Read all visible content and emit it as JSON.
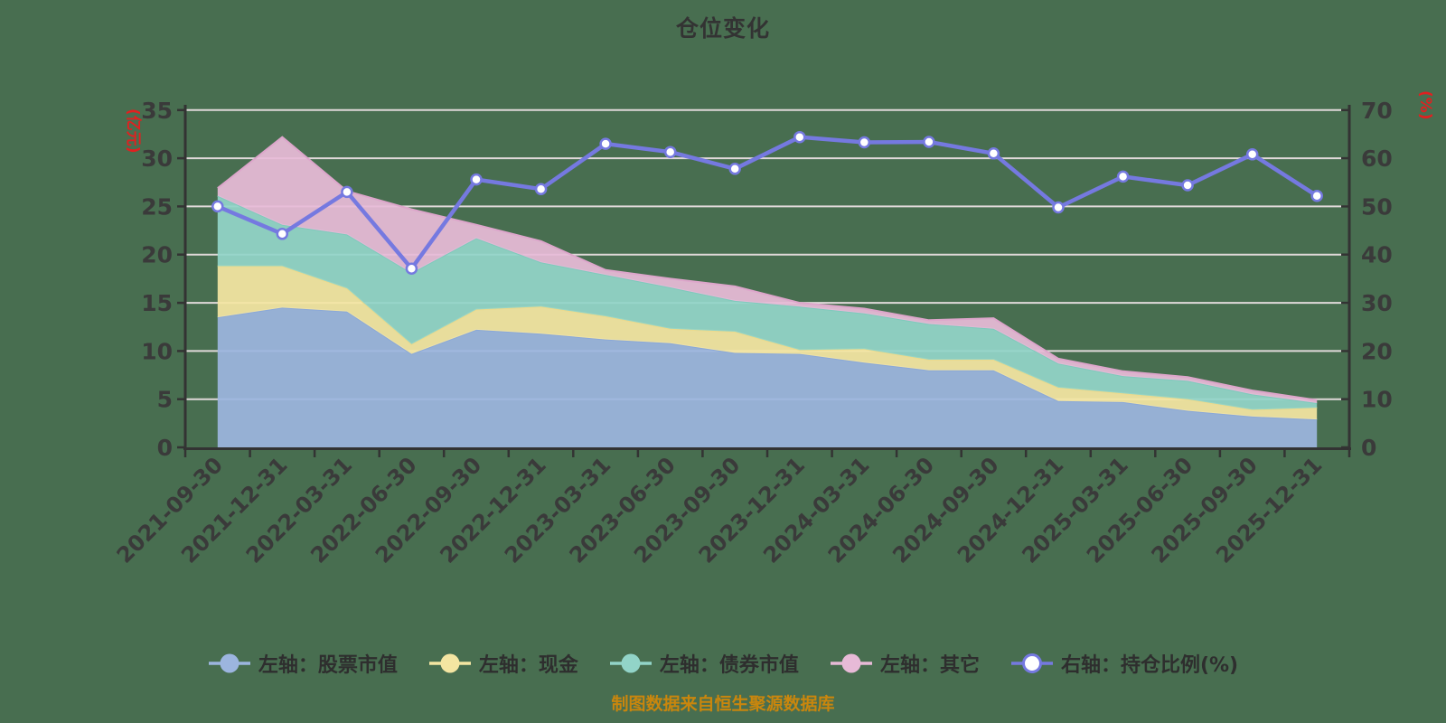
{
  "title": "仓位变化",
  "source_note": "制图数据来自恒生聚源数据库",
  "colors": {
    "background": "#486e50",
    "title_text": "#333333",
    "axis_line": "#333333",
    "axis_label": "#3a3a3a",
    "axis_name_red": "#e02020",
    "grid_line": "#e0d9d9",
    "legend_text": "#2e2e2e",
    "source_text": "#c9860d",
    "stock_area": "#9cb5df",
    "cash_area": "#f4e5a2",
    "bond_area": "#92d4c8",
    "other_area": "#e7bad7",
    "ratio_line": "#7579e0",
    "marker_fill": "#ffffff"
  },
  "chart_data": {
    "type": "area",
    "subtype": "stacked-area-with-line",
    "title": "仓位变化",
    "grid": true,
    "legend_position": "bottom",
    "categories": [
      "2021-09-30",
      "2021-12-31",
      "2022-03-31",
      "2022-06-30",
      "2022-09-30",
      "2022-12-31",
      "2023-03-31",
      "2023-06-30",
      "2023-09-30",
      "2023-12-31",
      "2024-03-31",
      "2024-06-30",
      "2024-09-30",
      "2024-12-31",
      "2025-03-31",
      "2025-06-30",
      "2025-09-30",
      "2025-12-31"
    ],
    "left_axis": {
      "name": "(亿元)",
      "min": 0,
      "max": 35,
      "tick_step": 5,
      "tick_labels": [
        "0",
        "5",
        "10",
        "15",
        "20",
        "25",
        "30",
        "35"
      ]
    },
    "right_axis": {
      "name": "(%)",
      "min": 0,
      "max": 70,
      "tick_step": 10,
      "tick_labels": [
        "0",
        "10",
        "20",
        "30",
        "40",
        "50",
        "60",
        "70"
      ]
    },
    "series": [
      {
        "name": "左轴：股票市值",
        "type": "area",
        "stack": true,
        "axis": "left",
        "color": "#9cb5df",
        "edge": "#8aa8d8",
        "values": [
          13.5,
          14.5,
          14.1,
          9.7,
          12.2,
          11.8,
          11.2,
          10.8,
          9.8,
          9.7,
          8.8,
          8.0,
          8.0,
          4.8,
          4.7,
          3.8,
          3.2,
          2.9
        ]
      },
      {
        "name": "左轴：现金",
        "type": "area",
        "stack": true,
        "axis": "left",
        "color": "#f4e5a2",
        "edge": "#ecda8c",
        "values": [
          5.3,
          4.3,
          2.4,
          1.0,
          2.1,
          2.8,
          2.4,
          1.5,
          2.2,
          0.4,
          1.4,
          1.1,
          1.1,
          1.4,
          0.9,
          1.2,
          0.7,
          1.2
        ]
      },
      {
        "name": "左轴：债券市值",
        "type": "area",
        "stack": true,
        "axis": "left",
        "color": "#92d4c8",
        "edge": "#7ecabc",
        "values": [
          7.3,
          4.3,
          5.6,
          7.4,
          7.4,
          4.6,
          4.3,
          4.3,
          3.2,
          4.5,
          3.7,
          3.7,
          3.2,
          2.5,
          1.8,
          1.9,
          1.6,
          0.5
        ]
      },
      {
        "name": "左轴：其它",
        "type": "area",
        "stack": true,
        "axis": "left",
        "color": "#e7bad7",
        "edge": "#dda6cb",
        "values": [
          0.8,
          9.1,
          4.5,
          6.6,
          1.4,
          2.2,
          0.5,
          0.9,
          1.5,
          0.4,
          0.5,
          0.4,
          1.1,
          0.5,
          0.5,
          0.4,
          0.4,
          0.3
        ]
      },
      {
        "name": "右轴：持仓比例(%)",
        "type": "line",
        "stack": false,
        "axis": "right",
        "color": "#7579e0",
        "marker": "circle",
        "values": [
          50.0,
          44.3,
          53.0,
          37.1,
          55.6,
          53.6,
          63.0,
          61.3,
          57.8,
          64.4,
          63.3,
          63.4,
          61.0,
          49.8,
          56.2,
          54.4,
          60.8,
          52.2
        ]
      }
    ]
  }
}
